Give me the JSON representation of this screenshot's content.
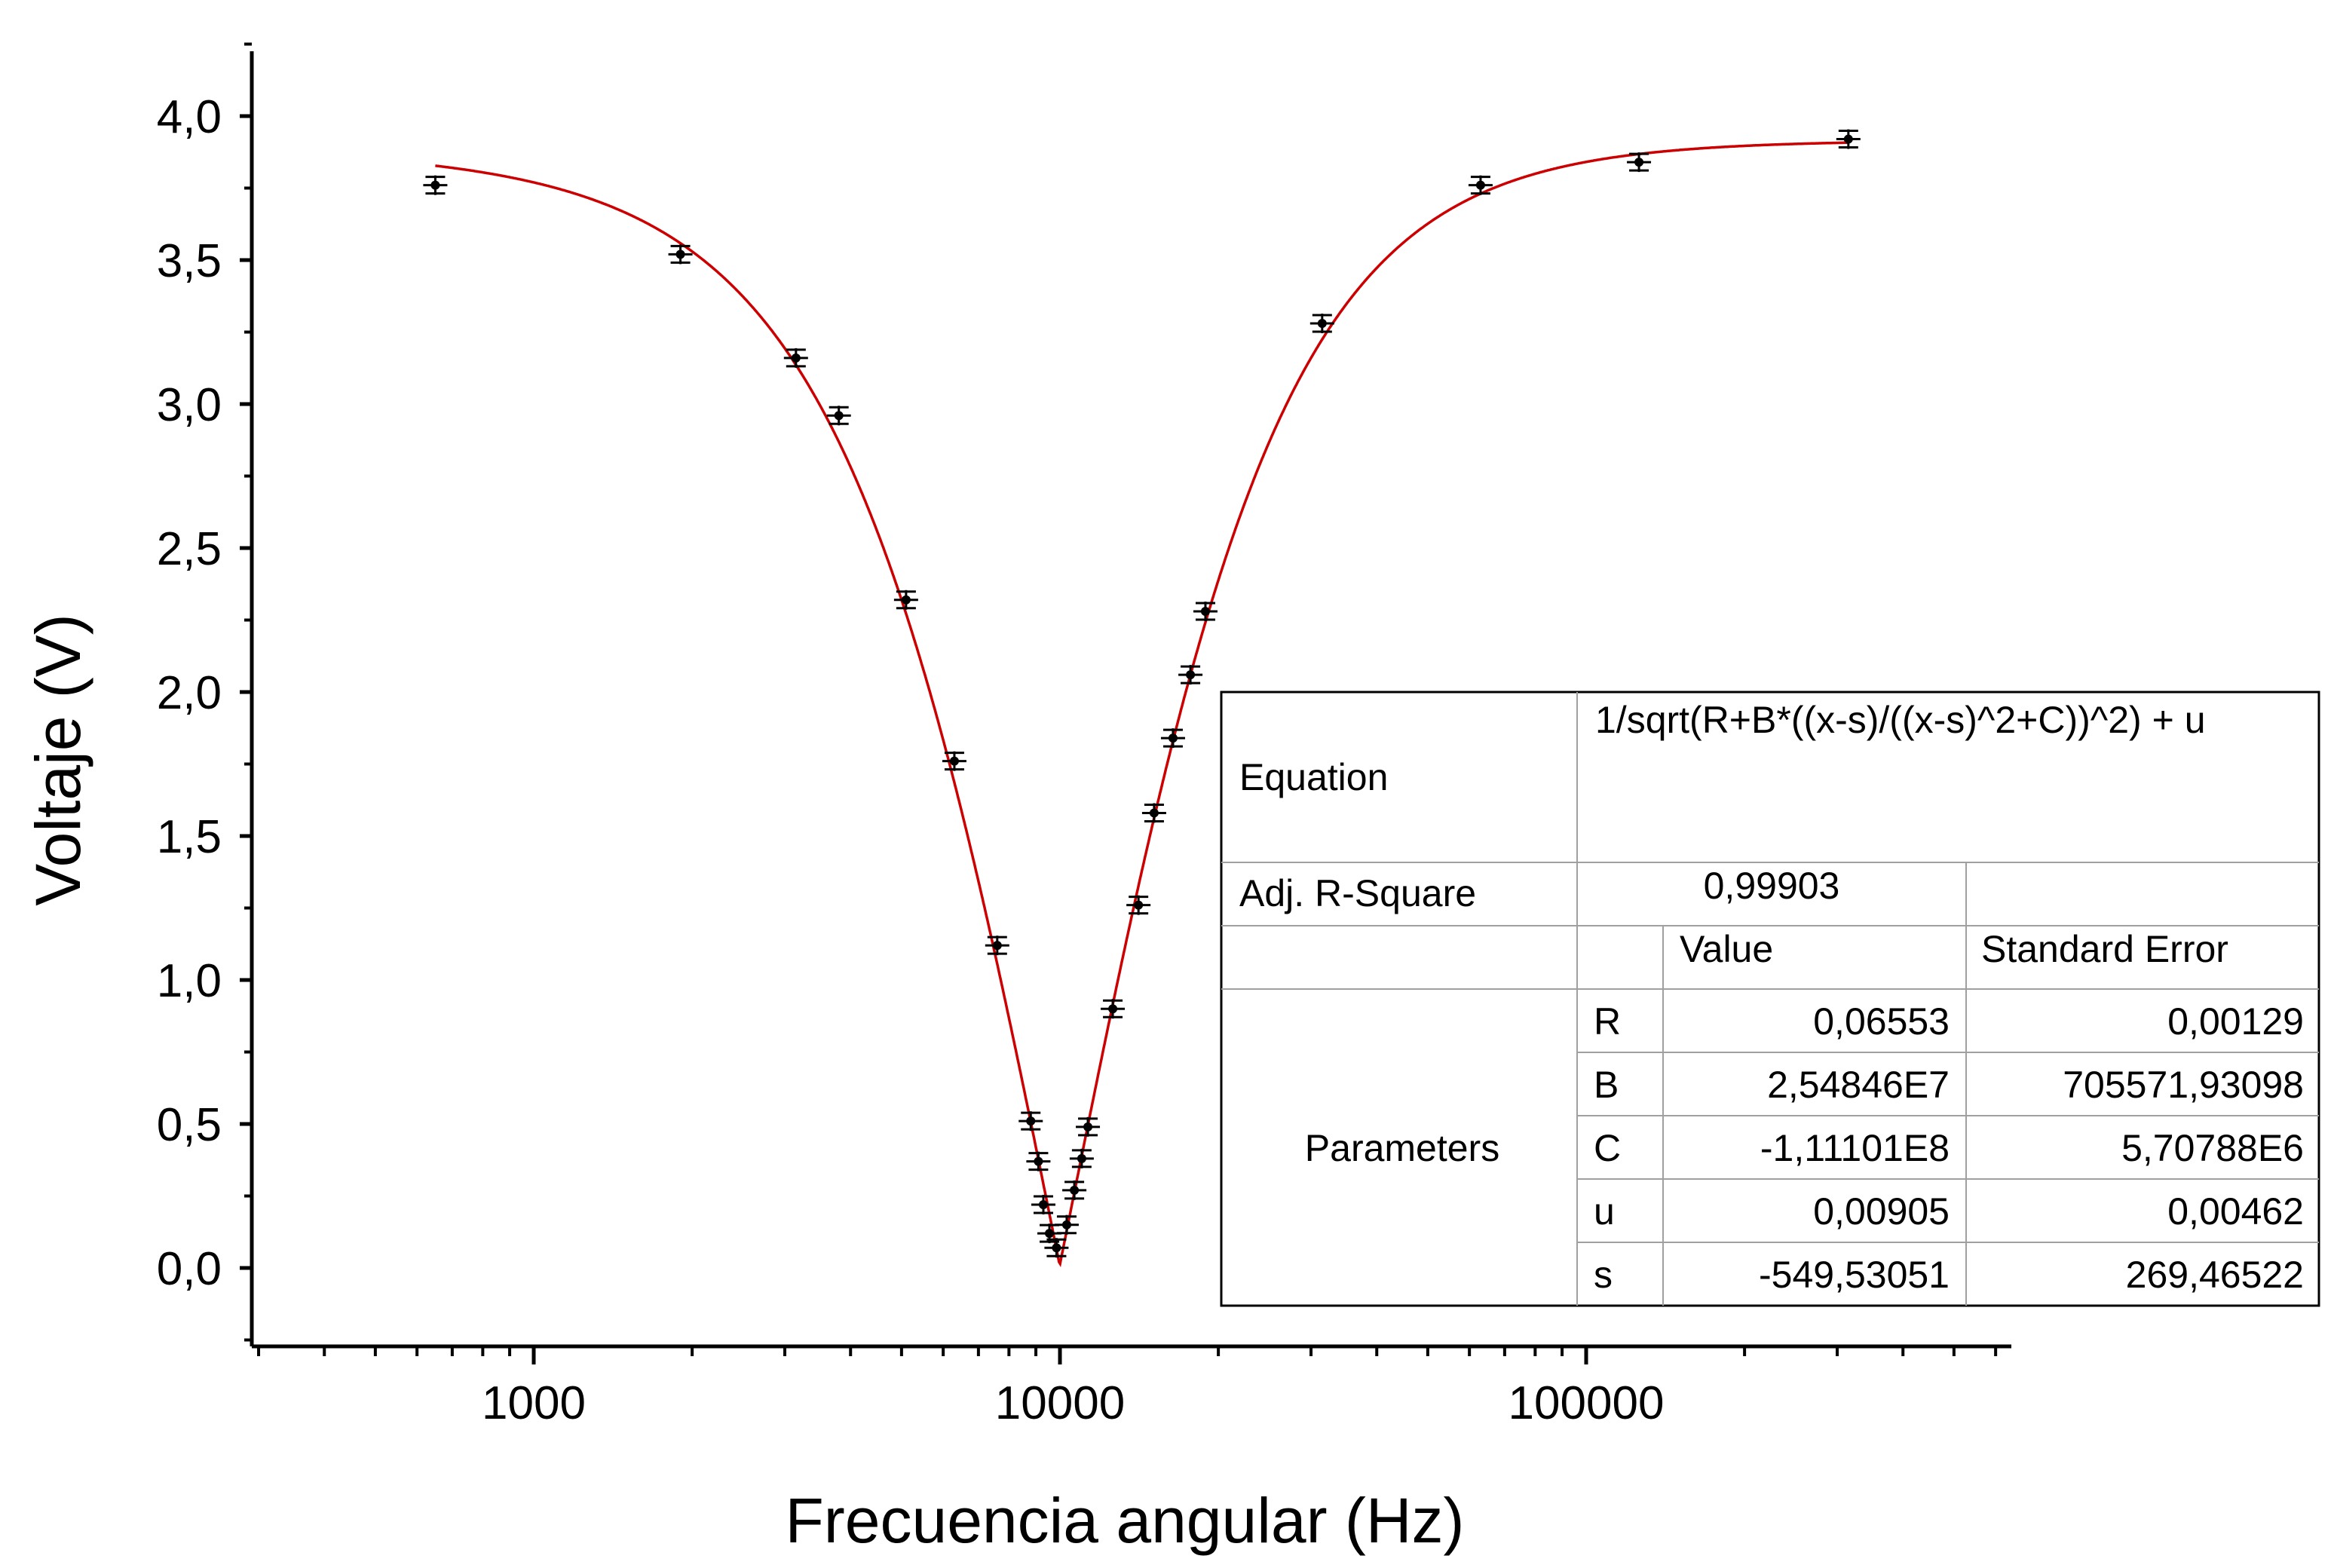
{
  "chart_data": {
    "type": "scatter",
    "xlabel": "Frecuencia angular (Hz)",
    "ylabel": "Voltaje (V)",
    "x_scale": "log",
    "xlim": [
      300,
      600000
    ],
    "ylim": [
      -0.25,
      4.25
    ],
    "x_ticks": [
      {
        "value": 1000,
        "label": "1000"
      },
      {
        "value": 10000,
        "label": "10000"
      },
      {
        "value": 100000,
        "label": "100000"
      }
    ],
    "y_ticks": [
      {
        "value": 0.0,
        "label": "0,0"
      },
      {
        "value": 0.5,
        "label": "0,5"
      },
      {
        "value": 1.0,
        "label": "1,0"
      },
      {
        "value": 1.5,
        "label": "1,5"
      },
      {
        "value": 2.0,
        "label": "2,0"
      },
      {
        "value": 2.5,
        "label": "2,5"
      },
      {
        "value": 3.0,
        "label": "3,0"
      },
      {
        "value": 3.5,
        "label": "3,5"
      },
      {
        "value": 4.0,
        "label": "4,0"
      }
    ],
    "grid": false,
    "series": [
      {
        "kind": "points",
        "color": "#000000",
        "error_bars": true,
        "points": [
          {
            "x": 650,
            "y": 3.76
          },
          {
            "x": 1900,
            "y": 3.52
          },
          {
            "x": 3150,
            "y": 3.16
          },
          {
            "x": 3800,
            "y": 2.96
          },
          {
            "x": 5100,
            "y": 2.32
          },
          {
            "x": 6300,
            "y": 1.76
          },
          {
            "x": 7600,
            "y": 1.12
          },
          {
            "x": 8800,
            "y": 0.51
          },
          {
            "x": 9100,
            "y": 0.37
          },
          {
            "x": 9300,
            "y": 0.22
          },
          {
            "x": 9550,
            "y": 0.12
          },
          {
            "x": 9850,
            "y": 0.07
          },
          {
            "x": 10300,
            "y": 0.15
          },
          {
            "x": 10650,
            "y": 0.27
          },
          {
            "x": 11000,
            "y": 0.38
          },
          {
            "x": 11300,
            "y": 0.49
          },
          {
            "x": 12600,
            "y": 0.9
          },
          {
            "x": 14100,
            "y": 1.26
          },
          {
            "x": 15100,
            "y": 1.58
          },
          {
            "x": 16400,
            "y": 1.84
          },
          {
            "x": 17700,
            "y": 2.06
          },
          {
            "x": 18900,
            "y": 2.28
          },
          {
            "x": 31500,
            "y": 3.28
          },
          {
            "x": 63000,
            "y": 3.76
          },
          {
            "x": 126000,
            "y": 3.84
          },
          {
            "x": 315000,
            "y": 3.92
          }
        ]
      },
      {
        "kind": "fit-curve",
        "color": "#cc0000",
        "x_range": [
          650,
          315000
        ]
      }
    ],
    "fit_table": {
      "equation_label": "Equation",
      "equation": "1/sqrt(R+B*((x-s)/((x-s)^2+C))^2) + u",
      "r2_label": "Adj. R-Square",
      "r2_value": "0,99903",
      "value_header": "Value",
      "error_header": "Standard Error",
      "parameters_label": "Parameters",
      "parameters": [
        {
          "name": "R",
          "value": "0,06553",
          "error": "0,00129"
        },
        {
          "name": "B",
          "value": "2,54846E7",
          "error": "705571,93098"
        },
        {
          "name": "C",
          "value": "-1,11101E8",
          "error": "5,70788E6"
        },
        {
          "name": "u",
          "value": "0,00905",
          "error": "0,00462"
        },
        {
          "name": "s",
          "value": "-549,53051",
          "error": "269,46522"
        }
      ]
    }
  }
}
